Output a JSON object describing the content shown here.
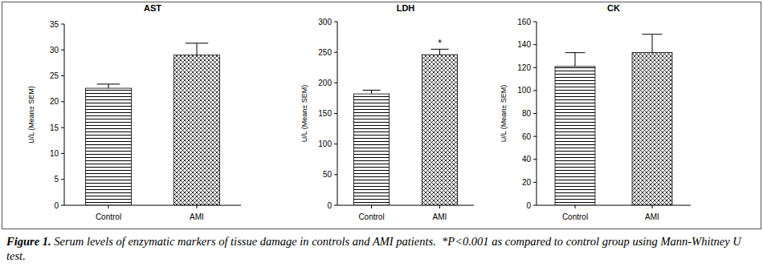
{
  "chart_data": [
    {
      "type": "bar",
      "title": "AST",
      "y_label": "U/L (Mean± SEM)",
      "categories": [
        "Control",
        "AMI"
      ],
      "values": [
        22.6,
        29.0
      ],
      "errors": [
        0.8,
        2.3
      ],
      "color": "#000000",
      "ylim": [
        0,
        35
      ],
      "yticks": [
        0,
        5,
        10,
        15,
        20,
        25,
        30,
        35
      ],
      "grid": false
    },
    {
      "type": "bar",
      "title": "LDH",
      "y_label": "U/L (Mean± SEM)",
      "categories": [
        "Control",
        "AMI"
      ],
      "values": [
        182,
        246
      ],
      "errors": [
        6,
        9
      ],
      "annotations": [
        {
          "category": "AMI",
          "text": "*"
        }
      ],
      "color": "#000000",
      "ylim": [
        0,
        300
      ],
      "yticks": [
        0,
        50,
        100,
        150,
        200,
        250,
        300
      ],
      "grid": false
    },
    {
      "type": "bar",
      "title": "CK",
      "y_label": "U/L (Mean± SEM)",
      "categories": [
        "Control",
        "AMI"
      ],
      "values": [
        121,
        133
      ],
      "errors": [
        12,
        16
      ],
      "color": "#000000",
      "ylim": [
        0,
        160
      ],
      "yticks": [
        0,
        20,
        40,
        60,
        80,
        100,
        120,
        140,
        160
      ],
      "grid": false
    }
  ],
  "caption": {
    "label": "Figure 1.",
    "text": "Serum levels of enzymatic markers of tissue damage in controls and AMI patients.  *P<0.001 as compared to control group using Mann-Whitney U test."
  }
}
